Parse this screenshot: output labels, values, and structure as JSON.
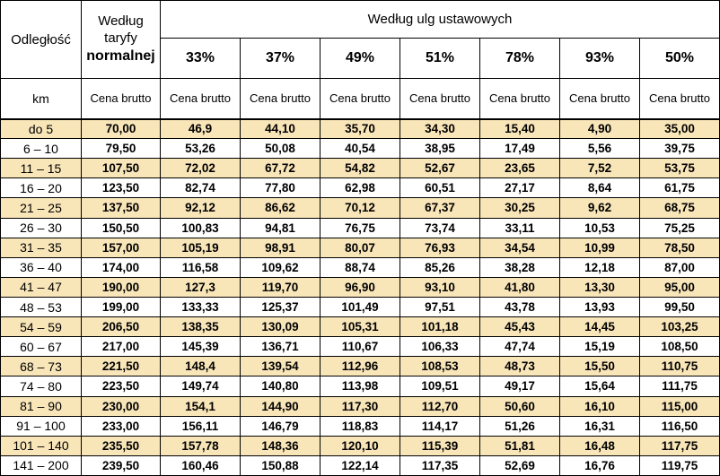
{
  "table": {
    "distance_header": "Odległość",
    "distance_unit": "km",
    "normal_header_line1": "Według",
    "normal_header_line2": "taryfy",
    "normal_header_line3": "normalnej",
    "ulg_header": "Według ulg ustawowych",
    "cena_brutto_label": "Cena brutto",
    "discounts": [
      "33%",
      "37%",
      "49%",
      "51%",
      "78%",
      "93%",
      "50%"
    ],
    "shaded_row_color": "#f8e5b8",
    "rows": [
      [
        "do 5",
        "70,00",
        "46,9",
        "44,10",
        "35,70",
        "34,30",
        "15,40",
        "4,90",
        "35,00"
      ],
      [
        "6 – 10",
        "79,50",
        "53,26",
        "50,08",
        "40,54",
        "38,95",
        "17,49",
        "5,56",
        "39,75"
      ],
      [
        "11 – 15",
        "107,50",
        "72,02",
        "67,72",
        "54,82",
        "52,67",
        "23,65",
        "7,52",
        "53,75"
      ],
      [
        "16 – 20",
        "123,50",
        "82,74",
        "77,80",
        "62,98",
        "60,51",
        "27,17",
        "8,64",
        "61,75"
      ],
      [
        "21 – 25",
        "137,50",
        "92,12",
        "86,62",
        "70,12",
        "67,37",
        "30,25",
        "9,62",
        "68,75"
      ],
      [
        "26 – 30",
        "150,50",
        "100,83",
        "94,81",
        "76,75",
        "73,74",
        "33,11",
        "10,53",
        "75,25"
      ],
      [
        "31 – 35",
        "157,00",
        "105,19",
        "98,91",
        "80,07",
        "76,93",
        "34,54",
        "10,99",
        "78,50"
      ],
      [
        "36 – 40",
        "174,00",
        "116,58",
        "109,62",
        "88,74",
        "85,26",
        "38,28",
        "12,18",
        "87,00"
      ],
      [
        "41 – 47",
        "190,00",
        "127,3",
        "119,70",
        "96,90",
        "93,10",
        "41,80",
        "13,30",
        "95,00"
      ],
      [
        "48 – 53",
        "199,00",
        "133,33",
        "125,37",
        "101,49",
        "97,51",
        "43,78",
        "13,93",
        "99,50"
      ],
      [
        "54 – 59",
        "206,50",
        "138,35",
        "130,09",
        "105,31",
        "101,18",
        "45,43",
        "14,45",
        "103,25"
      ],
      [
        "60 – 67",
        "217,00",
        "145,39",
        "136,71",
        "110,67",
        "106,33",
        "47,74",
        "15,19",
        "108,50"
      ],
      [
        "68 – 73",
        "221,50",
        "148,4",
        "139,54",
        "112,96",
        "108,53",
        "48,73",
        "15,50",
        "110,75"
      ],
      [
        "74 – 80",
        "223,50",
        "149,74",
        "140,80",
        "113,98",
        "109,51",
        "49,17",
        "15,64",
        "111,75"
      ],
      [
        "81 – 90",
        "230,00",
        "154,1",
        "144,90",
        "117,30",
        "112,70",
        "50,60",
        "16,10",
        "115,00"
      ],
      [
        "91 – 100",
        "233,00",
        "156,11",
        "146,79",
        "118,83",
        "114,17",
        "51,26",
        "16,31",
        "116,50"
      ],
      [
        "101 – 140",
        "235,50",
        "157,78",
        "148,36",
        "120,10",
        "115,39",
        "51,81",
        "16,48",
        "117,75"
      ],
      [
        "141 – 200",
        "239,50",
        "160,46",
        "150,88",
        "122,14",
        "117,35",
        "52,69",
        "16,76",
        "119,75"
      ]
    ]
  }
}
